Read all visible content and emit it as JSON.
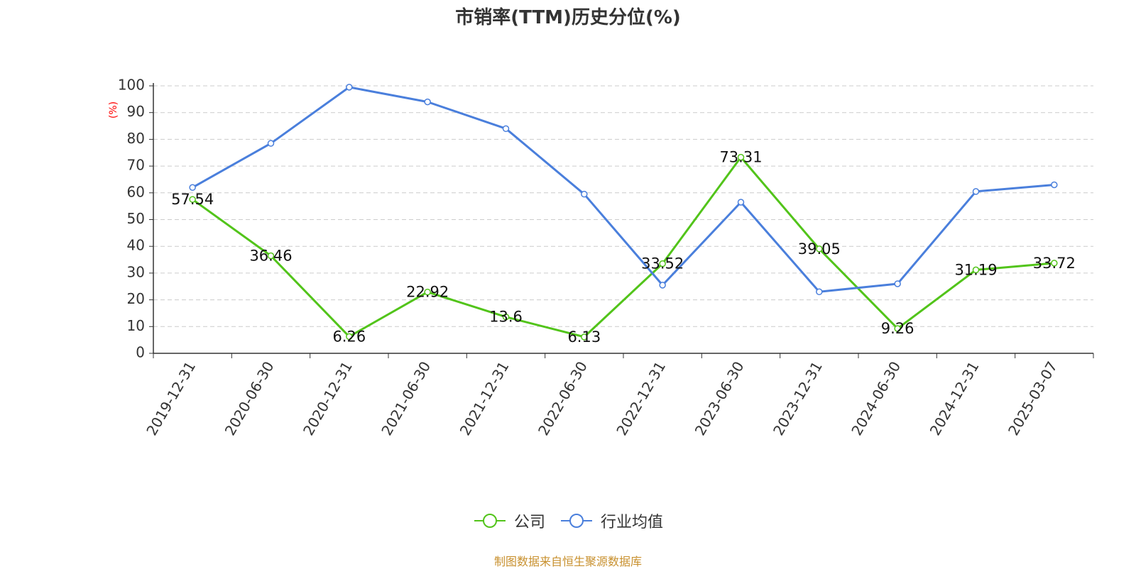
{
  "title": "市销率(TTM)历史分位(%)",
  "source_note": "制图数据来自恒生聚源数据库",
  "colors": {
    "company": "#52c41a",
    "industry": "#4a7fdc",
    "ylabel": "#ff0000"
  },
  "chart_data": {
    "type": "line",
    "title": "市销率(TTM)历史分位(%)",
    "ylabel": "(%)",
    "ylim": [
      0,
      100
    ],
    "yticks": [
      "0",
      "10",
      "20",
      "30",
      "40",
      "50",
      "60",
      "70",
      "80",
      "90",
      "100"
    ],
    "grid": true,
    "legend_position": "bottom",
    "categories": [
      "2019-12-31",
      "2020-06-30",
      "2020-12-31",
      "2021-06-30",
      "2021-12-31",
      "2022-06-30",
      "2022-12-31",
      "2023-06-30",
      "2023-12-31",
      "2024-06-30",
      "2024-12-31",
      "2025-03-07"
    ],
    "series": [
      {
        "name": "公司",
        "values": [
          57.54,
          36.46,
          6.26,
          22.92,
          13.6,
          6.13,
          33.52,
          73.31,
          39.05,
          9.26,
          31.19,
          33.72
        ],
        "labels_shown": true
      },
      {
        "name": "行业均值",
        "values": [
          62,
          78.5,
          99.5,
          94,
          84,
          59.5,
          25.5,
          56.5,
          23,
          26,
          60.5,
          63
        ],
        "labels_shown": false
      }
    ]
  }
}
